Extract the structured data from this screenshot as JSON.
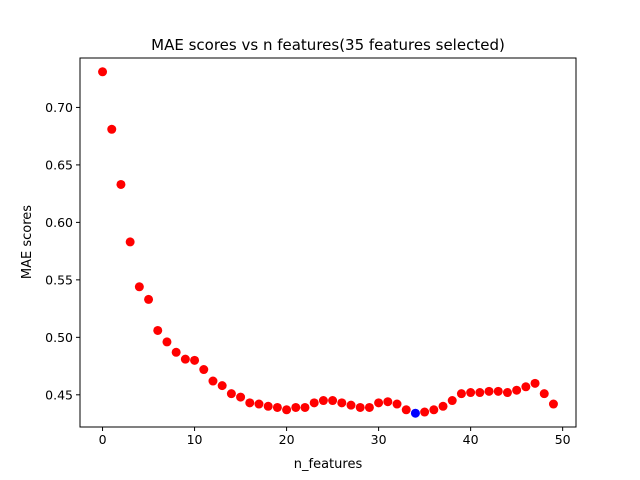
{
  "chart_data": {
    "type": "scatter",
    "title": "MAE scores vs n features(35 features selected)",
    "xlabel": "n_features",
    "ylabel": "MAE scores",
    "xlim": [
      -2.45,
      51.45
    ],
    "ylim": [
      0.422,
      0.743
    ],
    "xticks": [
      0,
      10,
      20,
      30,
      40,
      50
    ],
    "yticks": [
      0.45,
      0.5,
      0.55,
      0.6,
      0.65,
      0.7
    ],
    "ytick_labels": [
      "0.45",
      "0.50",
      "0.55",
      "0.60",
      "0.65",
      "0.70"
    ],
    "grid": false,
    "series": [
      {
        "color": "#ff0000",
        "x": [
          0,
          1,
          2,
          3,
          4,
          5,
          6,
          7,
          8,
          9,
          10,
          11,
          12,
          13,
          14,
          15,
          16,
          17,
          18,
          19,
          20,
          21,
          22,
          23,
          24,
          25,
          26,
          27,
          28,
          29,
          30,
          31,
          32,
          33,
          35,
          36,
          37,
          38,
          39,
          40,
          41,
          42,
          43,
          44,
          45,
          46,
          47,
          48,
          49
        ],
        "y": [
          0.731,
          0.681,
          0.633,
          0.583,
          0.544,
          0.533,
          0.506,
          0.496,
          0.487,
          0.481,
          0.48,
          0.472,
          0.462,
          0.458,
          0.451,
          0.448,
          0.443,
          0.442,
          0.44,
          0.439,
          0.437,
          0.439,
          0.439,
          0.443,
          0.445,
          0.445,
          0.443,
          0.441,
          0.439,
          0.439,
          0.443,
          0.444,
          0.442,
          0.437,
          0.435,
          0.437,
          0.44,
          0.445,
          0.451,
          0.452,
          0.452,
          0.453,
          0.453,
          0.452,
          0.454,
          0.457,
          0.46,
          0.451,
          0.442
        ]
      },
      {
        "color": "#0000ff",
        "x": [
          34
        ],
        "y": [
          0.434
        ]
      }
    ]
  }
}
